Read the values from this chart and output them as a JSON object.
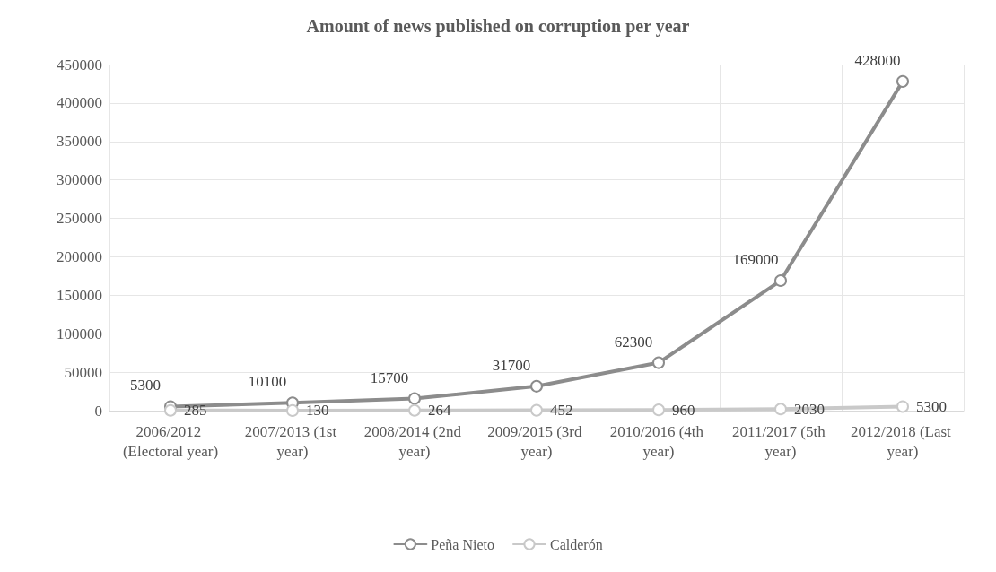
{
  "chart_data": {
    "type": "line",
    "title": "Amount of news published on corruption per year",
    "categories": [
      "2006/2012 (Electoral year)",
      "2007/2013 (1st year)",
      "2008/2014 (2nd year)",
      "2009/2015 (3rd year)",
      "2010/2016 (4th year)",
      "2011/2017 (5th year)",
      "2012/2018 (Last year)"
    ],
    "series": [
      {
        "name": "Peña Nieto",
        "color": "#8c8c8c",
        "values": [
          5300,
          10100,
          15700,
          31700,
          62300,
          169000,
          428000
        ]
      },
      {
        "name": "Calderón",
        "color": "#c9c9c9",
        "values": [
          285,
          130,
          264,
          452,
          960,
          2030,
          5300
        ]
      }
    ],
    "ylim": [
      0,
      450000
    ],
    "yticks": [
      0,
      50000,
      100000,
      150000,
      200000,
      250000,
      300000,
      350000,
      400000,
      450000
    ],
    "grid": true,
    "legend": "bottom",
    "marker": "circle",
    "line_style": "solid",
    "data_labels": true
  }
}
